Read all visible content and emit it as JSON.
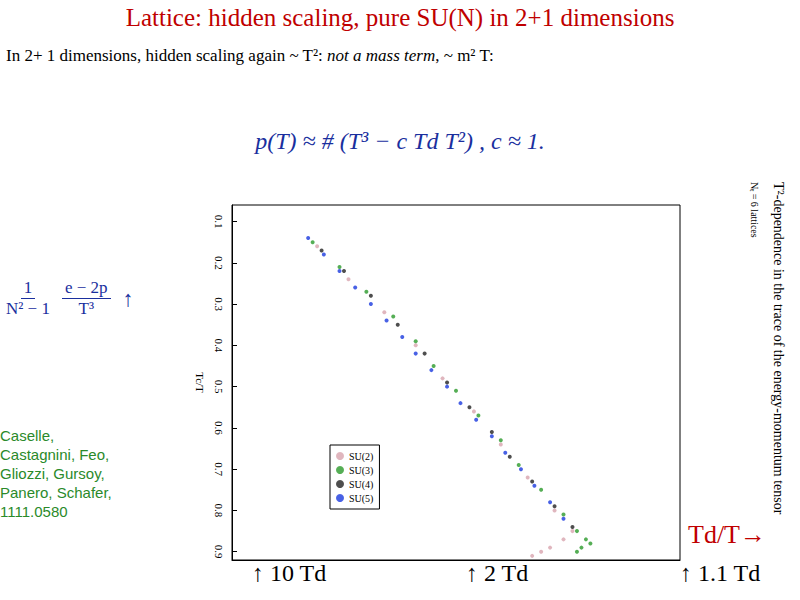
{
  "slide": {
    "title": "Lattice: hidden scaling, pure SU(N) in 2+1 dimensions",
    "intro": [
      {
        "text": "In 2+ 1 dimensions, hidden scaling again ~ T²: ",
        "italic": false
      },
      {
        "text": "not a mass term",
        "italic": true
      },
      {
        "text": ", ~ m² T:",
        "italic": false
      }
    ],
    "formula": "p(T) ≈ # (T³ − c Td T²) , c ≈ 1.",
    "left_label": {
      "numerator1": "1",
      "denominator1": "N² − 1",
      "numerator2": "e − 2p",
      "denominator2": "T³",
      "arrow": "↑"
    },
    "citation": [
      "Caselle,",
      "Castagnini, Feo,",
      "Gliozzi, Gursoy,",
      "Panero, Schafer,",
      "1111.0580"
    ],
    "axis_note": "Td/T→",
    "annotations": [
      "↑ 10 Td",
      "↑ 2 Td",
      "↑ 1.1 Td"
    ]
  },
  "chart_data": {
    "type": "scatter",
    "title": "T²-dependence in the trace of the energy-momentum tensor",
    "subtitle": "Nₜ = 6 lattices",
    "xlabel": "Tc/T",
    "xlim": [
      0.06,
      0.92
    ],
    "xticks": [
      0.1,
      0.2,
      0.3,
      0.4,
      0.5,
      0.6,
      0.7,
      0.8,
      0.9
    ],
    "ylim": [
      0,
      1
    ],
    "tick_labels": "x",
    "grid": false,
    "legend": "lower left",
    "series": [
      {
        "name": "SU(2)",
        "color": "#d8a4ae",
        "marker": "circle",
        "x": [
          0.16,
          0.24,
          0.32,
          0.4,
          0.48,
          0.56,
          0.64,
          0.72,
          0.8,
          0.85,
          0.87,
          0.89,
          0.9,
          0.91
        ],
        "values": [
          0.19,
          0.26,
          0.34,
          0.41,
          0.47,
          0.54,
          0.6,
          0.66,
          0.72,
          0.76,
          0.74,
          0.71,
          0.69,
          0.67
        ]
      },
      {
        "name": "SU(3)",
        "color": "#2a9a2a",
        "marker": "circle",
        "x": [
          0.15,
          0.21,
          0.27,
          0.33,
          0.39,
          0.45,
          0.51,
          0.57,
          0.63,
          0.69,
          0.75,
          0.81,
          0.85,
          0.87,
          0.88,
          0.89,
          0.9
        ],
        "values": [
          0.18,
          0.24,
          0.3,
          0.36,
          0.41,
          0.45,
          0.5,
          0.55,
          0.6,
          0.64,
          0.69,
          0.74,
          0.77,
          0.79,
          0.8,
          0.78,
          0.77
        ]
      },
      {
        "name": "SU(4)",
        "color": "#222222",
        "marker": "circle",
        "x": [
          0.17,
          0.22,
          0.28,
          0.35,
          0.42,
          0.49,
          0.55,
          0.61,
          0.67,
          0.73,
          0.79,
          0.84
        ],
        "values": [
          0.2,
          0.25,
          0.31,
          0.37,
          0.43,
          0.48,
          0.53,
          0.58,
          0.62,
          0.67,
          0.72,
          0.76
        ]
      },
      {
        "name": "SU(5)",
        "color": "#1a3adf",
        "marker": "circle",
        "x": [
          0.14,
          0.18,
          0.22,
          0.26,
          0.3,
          0.34,
          0.38,
          0.42,
          0.46,
          0.5,
          0.54,
          0.58,
          0.62,
          0.66,
          0.7,
          0.74,
          0.78,
          0.82
        ],
        "values": [
          0.17,
          0.205,
          0.24,
          0.275,
          0.31,
          0.345,
          0.38,
          0.41,
          0.445,
          0.48,
          0.51,
          0.545,
          0.58,
          0.61,
          0.645,
          0.675,
          0.71,
          0.74
        ]
      }
    ]
  }
}
